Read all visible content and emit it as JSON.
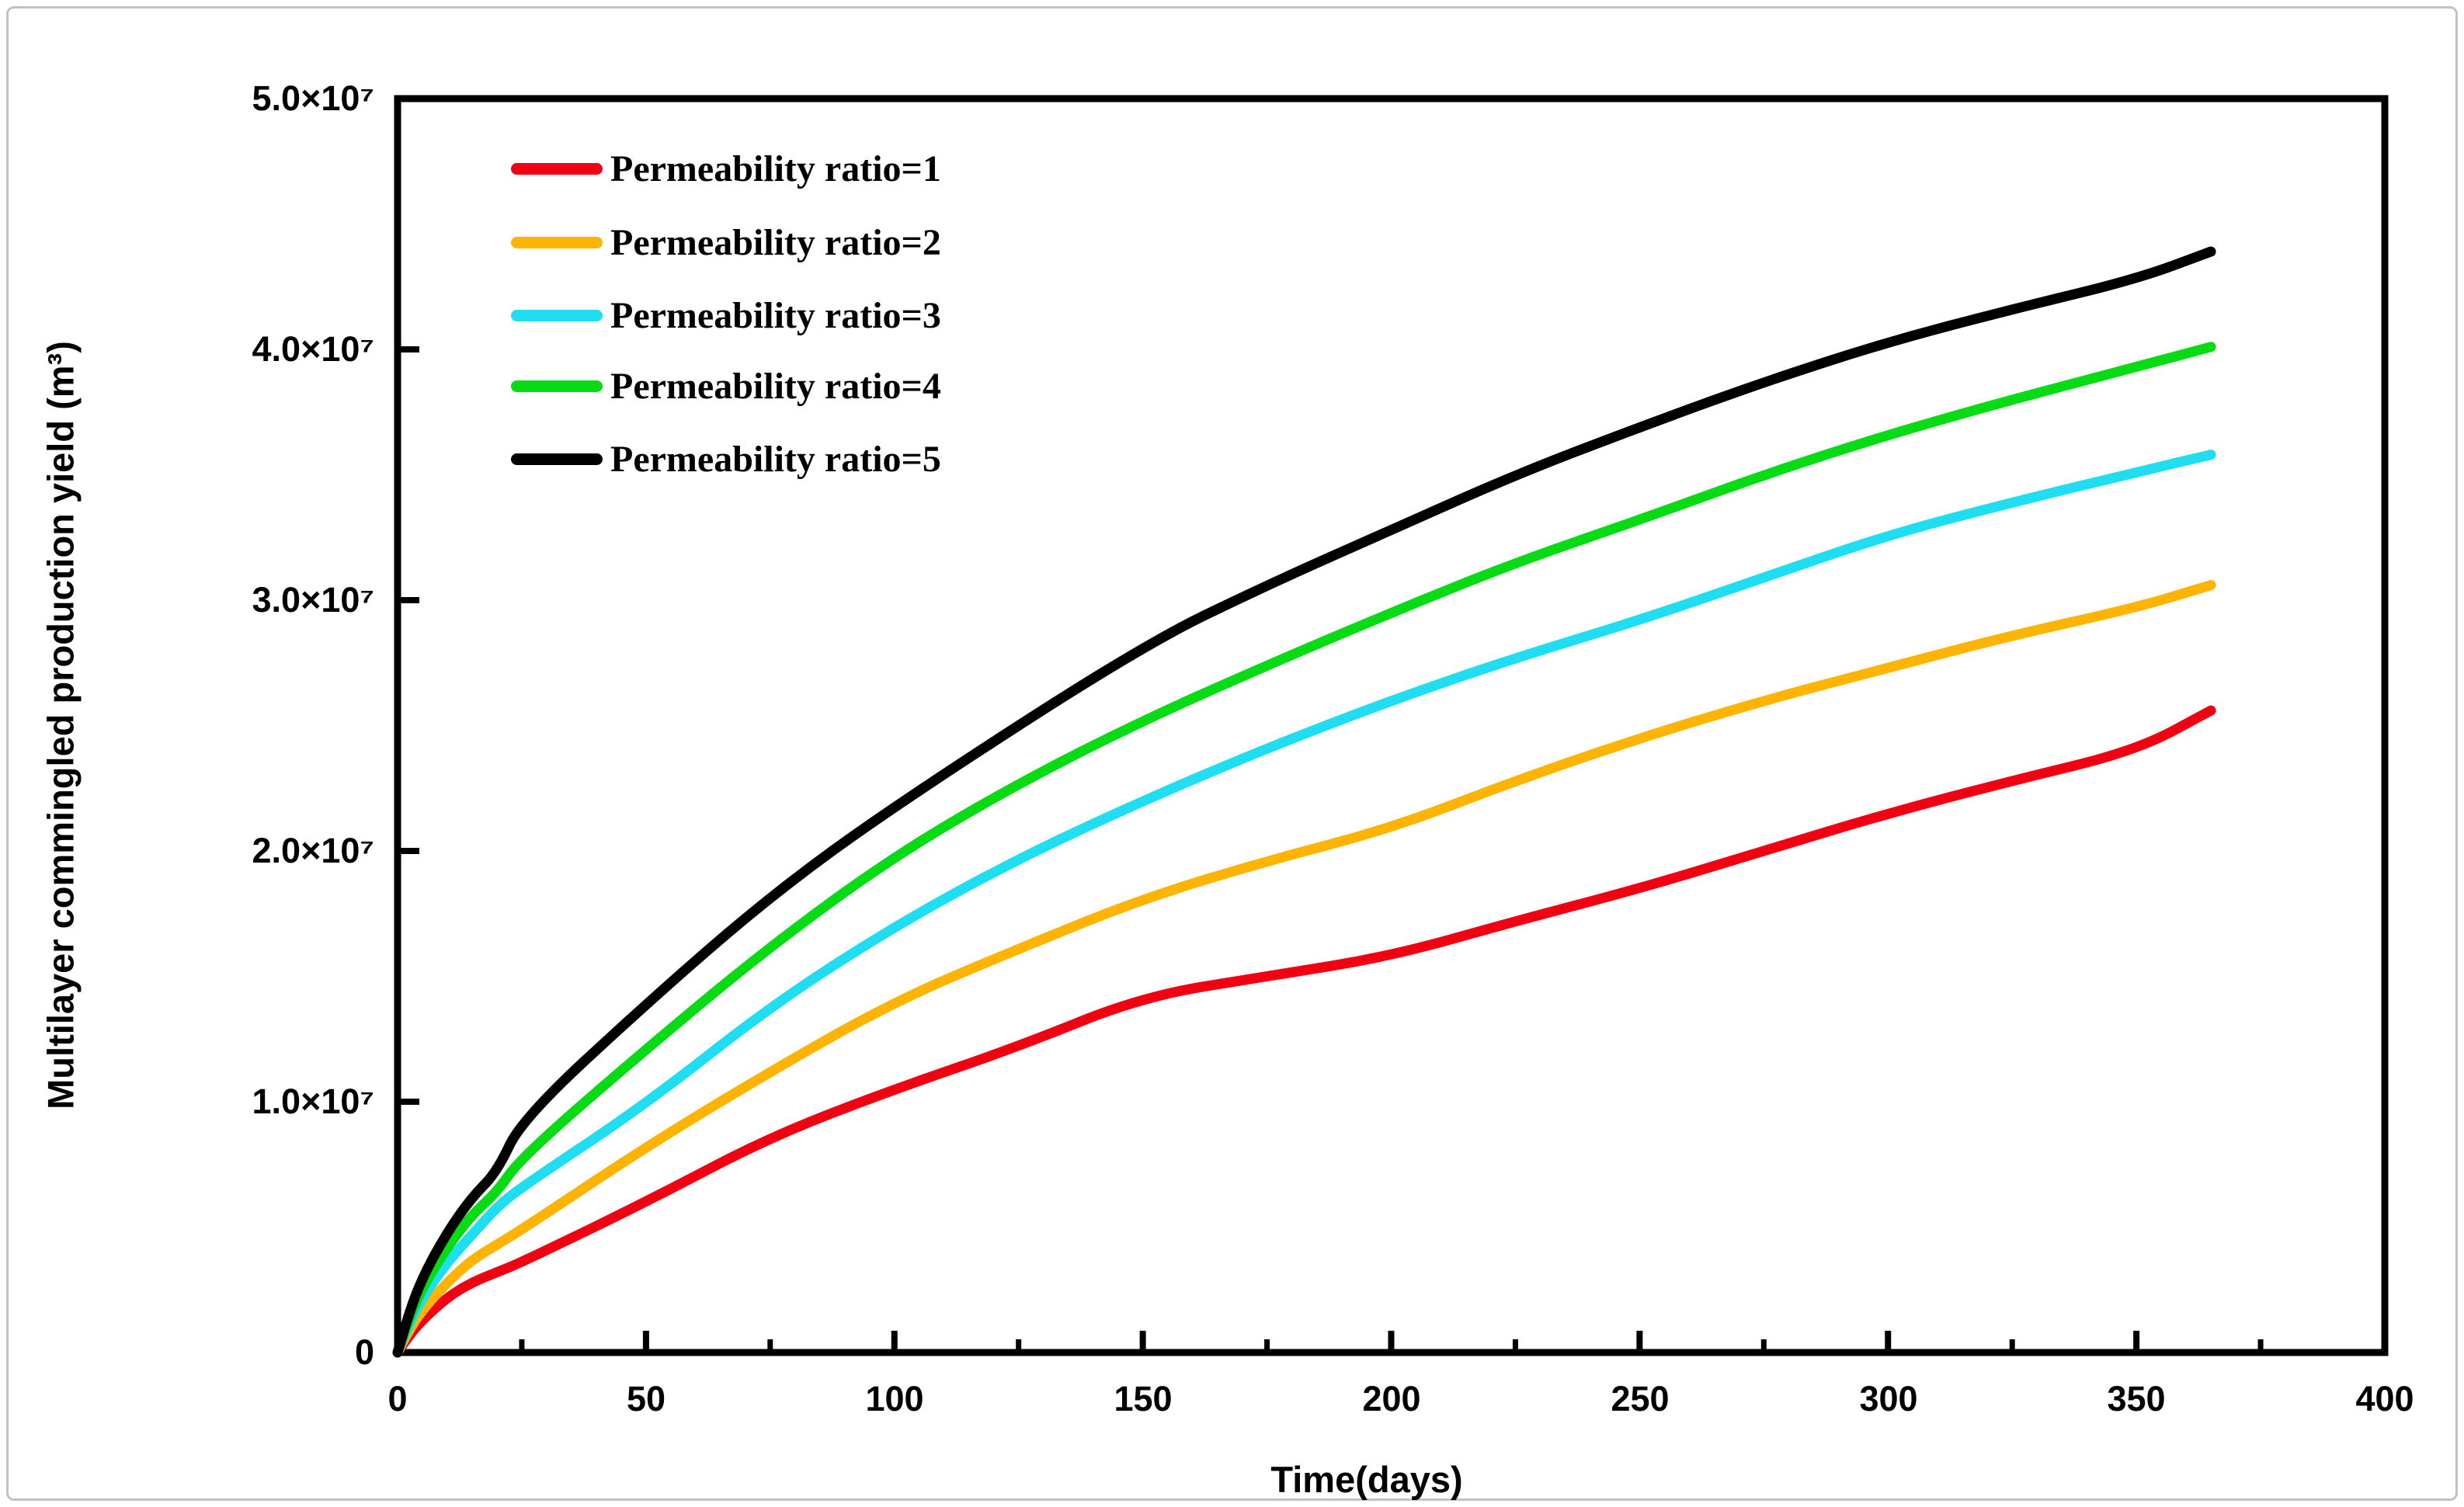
{
  "figure": {
    "background": "#ffffff",
    "frame_border_color": "#c2c2c2",
    "axis_color": "#000000"
  },
  "chart_data": {
    "type": "line",
    "title": "",
    "xlabel": "Time(days)",
    "ylabel": "Multilayer commingled production yield (m³)",
    "xlim": [
      0,
      400
    ],
    "ylim": [
      0,
      50000000
    ],
    "grid": false,
    "legend_position": "upper-left-inside",
    "xticks": [
      0,
      50,
      100,
      150,
      200,
      250,
      300,
      350,
      400
    ],
    "xticks_minor": [
      25,
      75,
      125,
      175,
      225,
      275,
      325,
      375
    ],
    "xtick_labels": [
      "0",
      "50",
      "100",
      "150",
      "200",
      "250",
      "300",
      "350",
      "400"
    ],
    "yticks": [
      0,
      10000000,
      20000000,
      30000000,
      40000000,
      50000000
    ],
    "ytick_labels": [
      "0",
      "1.0×10⁷",
      "2.0×10⁷",
      "3.0×10⁷",
      "4.0×10⁷",
      "5.0×10⁷"
    ],
    "x_shared": [
      0,
      2,
      5,
      10,
      15,
      20,
      25,
      50,
      75,
      100,
      125,
      150,
      175,
      200,
      225,
      250,
      275,
      300,
      325,
      350,
      365
    ],
    "series": [
      {
        "name": "Permeability ratio=1",
        "color": "#f00011",
        "x": [
          0,
          2,
          5,
          10,
          15,
          20,
          25,
          50,
          75,
          100,
          125,
          150,
          175,
          200,
          225,
          250,
          275,
          300,
          325,
          350,
          365
        ],
        "y": [
          0,
          600000,
          1300000,
          2200000,
          2800000,
          3200000,
          3600000,
          6000000,
          8600000,
          10500000,
          12200000,
          14200000,
          15000000,
          15800000,
          17200000,
          18500000,
          20000000,
          21500000,
          22800000,
          24000000,
          25600000
        ]
      },
      {
        "name": "Permeability ratio=2",
        "color": "#ffb402",
        "x": [
          0,
          2,
          5,
          10,
          15,
          20,
          25,
          50,
          75,
          100,
          125,
          150,
          175,
          200,
          225,
          250,
          275,
          300,
          325,
          350,
          365
        ],
        "y": [
          0,
          800000,
          1700000,
          2800000,
          3700000,
          4300000,
          4900000,
          8200000,
          11200000,
          14000000,
          16100000,
          18100000,
          19600000,
          20900000,
          22800000,
          24500000,
          26000000,
          27300000,
          28600000,
          29700000,
          30600000
        ]
      },
      {
        "name": "Permeability ratio=3",
        "color": "#1fdef2",
        "x": [
          0,
          2,
          5,
          10,
          15,
          20,
          25,
          50,
          75,
          100,
          125,
          150,
          175,
          200,
          225,
          250,
          275,
          300,
          325,
          350,
          365
        ],
        "y": [
          0,
          1000000,
          2200000,
          3600000,
          4700000,
          5800000,
          6600000,
          9900000,
          13800000,
          17000000,
          19700000,
          22000000,
          24100000,
          26000000,
          27700000,
          29200000,
          30900000,
          32600000,
          33900000,
          35100000,
          35800000
        ]
      },
      {
        "name": "Permeability ratio=4",
        "color": "#06db14",
        "x": [
          0,
          2,
          5,
          10,
          15,
          20,
          25,
          50,
          75,
          100,
          125,
          150,
          175,
          200,
          225,
          250,
          275,
          300,
          325,
          350,
          365
        ],
        "y": [
          0,
          1200000,
          2600000,
          4200000,
          5500000,
          6400000,
          7800000,
          12100000,
          16200000,
          19800000,
          22700000,
          25200000,
          27400000,
          29500000,
          31500000,
          33200000,
          35000000,
          36600000,
          38000000,
          39300000,
          40100000
        ]
      },
      {
        "name": "Permeability ratio=5",
        "color": "#000000",
        "x": [
          0,
          2,
          5,
          10,
          15,
          20,
          25,
          50,
          75,
          100,
          150,
          175,
          200,
          225,
          250,
          275,
          300,
          325,
          350,
          365
        ],
        "y": [
          0,
          1400000,
          3000000,
          4800000,
          6200000,
          7200000,
          9300000,
          13900000,
          18200000,
          21800000,
          28200000,
          30600000,
          32800000,
          35000000,
          36900000,
          38700000,
          40300000,
          41600000,
          42800000,
          43900000
        ]
      }
    ]
  }
}
